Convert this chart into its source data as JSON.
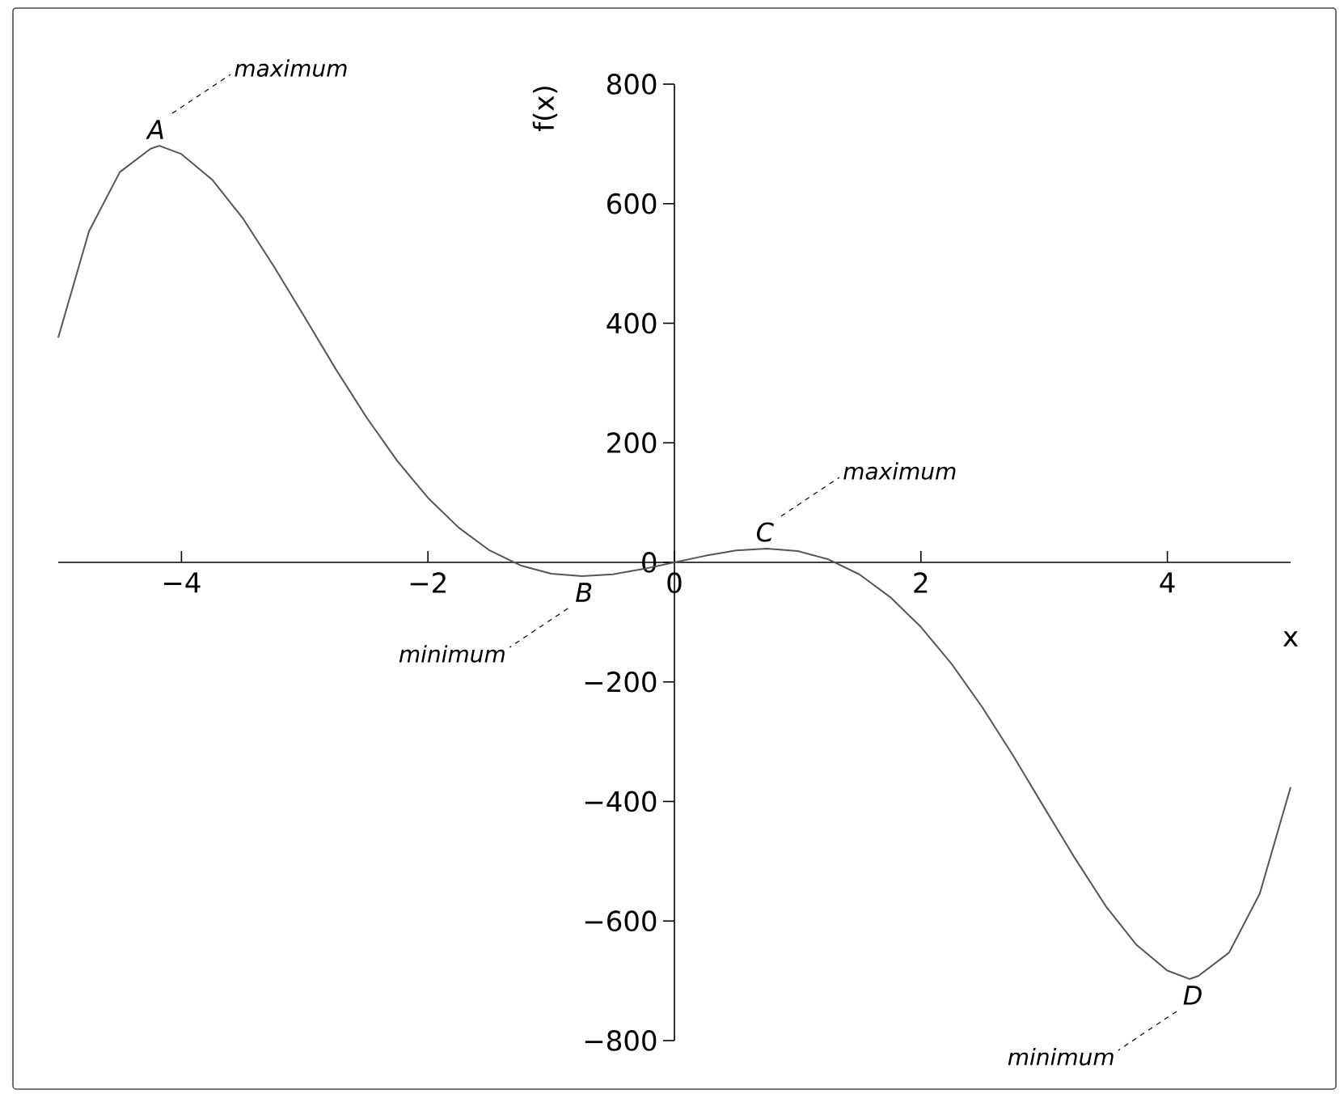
{
  "chart_data": {
    "type": "line",
    "xlabel": "x",
    "ylabel": "f(x)",
    "color": "#555555",
    "x": [
      -5,
      -4.75,
      -4.5,
      -4.25,
      -4.18,
      -4,
      -3.75,
      -3.5,
      -3.25,
      -3,
      -2.75,
      -2.5,
      -2.25,
      -2,
      -1.75,
      -1.5,
      -1.25,
      -1,
      -0.75,
      -0.5,
      -0.25,
      0,
      0.25,
      0.5,
      0.75,
      1,
      1.25,
      1.5,
      1.75,
      2,
      2.25,
      2.5,
      2.75,
      3,
      3.25,
      3.5,
      3.75,
      4,
      4.18,
      4.25,
      4.5,
      4.75,
      5
    ],
    "values": [
      376,
      554,
      653,
      692,
      697,
      683,
      640,
      575,
      495,
      410,
      324,
      243,
      170,
      108,
      58,
      20,
      -5,
      -19,
      -23,
      -20,
      -11,
      0,
      11,
      20,
      23,
      19,
      5,
      -20,
      -58,
      -108,
      -170,
      -243,
      -324,
      -410,
      -495,
      -575,
      -640,
      -683,
      -697,
      -692,
      -653,
      -554,
      -376
    ],
    "xlim": [
      -5,
      5
    ],
    "ylim": [
      -800,
      800
    ],
    "xticks": [
      {
        "value": -4,
        "label": "−4"
      },
      {
        "value": -2,
        "label": "−2"
      },
      0,
      2,
      4
    ],
    "yticks": [
      {
        "value": -800,
        "label": "−800"
      },
      {
        "value": -600,
        "label": "−600"
      },
      {
        "value": -400,
        "label": "−400"
      },
      {
        "value": -200,
        "label": "−200"
      },
      0,
      200,
      400,
      600,
      800
    ],
    "annotations": [
      {
        "text": "A",
        "x": -4.18,
        "y": 697
      },
      "maximum",
      {
        "text": "B",
        "x": -0.76,
        "y": -23
      },
      "minimum",
      {
        "text": "C",
        "x": 0.76,
        "y": 23
      },
      "maximum",
      {
        "text": "D",
        "x": 4.18,
        "y": -697
      },
      "minimum"
    ]
  }
}
